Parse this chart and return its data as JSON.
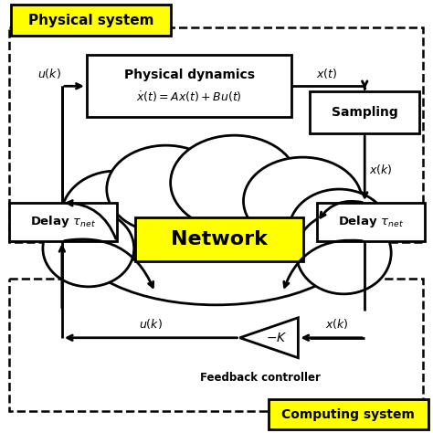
{
  "bg_color": "#ffffff",
  "yellow": "#FFFF00",
  "black": "#000000",
  "title_physical": "Physical system",
  "title_computing": "Computing system",
  "network_label": "Network",
  "phys_dyn_label1": "Physical dynamics",
  "phys_dyn_label2": "$\\dot{x}(t) = Ax(t) + Bu(t)$",
  "sampling_label": "Sampling",
  "delay_left_label": "Delay $\\tau_{net}$",
  "delay_right_label": "Delay $\\tau_{net}$",
  "feedback_label": "Feedback controller",
  "neg_k_label": "$-K$",
  "uk_top": "$u(k)$",
  "xt_label": "$x(t)$",
  "xk_right": "$x(k)$",
  "xk_bottom": "$x(k)$",
  "uk_bottom": "$u(k)$"
}
